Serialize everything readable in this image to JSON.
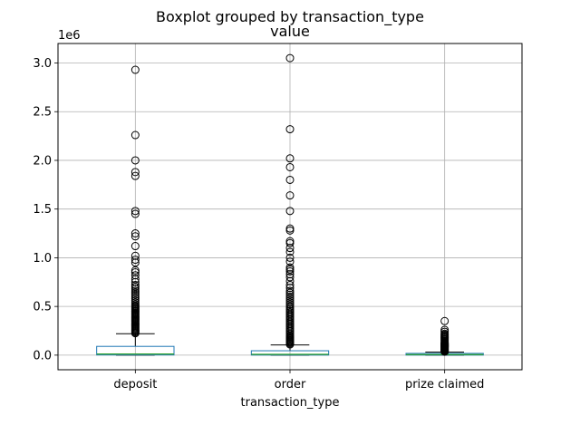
{
  "chart_data": {
    "type": "box",
    "suptitle": "Boxplot grouped by transaction_type",
    "title": "value",
    "xlabel": "transaction_type",
    "ylabel": "",
    "y_offset_label": "1e6",
    "ylim": [
      -150000,
      3200000
    ],
    "y_ticks": [
      0,
      500000,
      1000000,
      1500000,
      2000000,
      2500000,
      3000000
    ],
    "y_tick_labels": [
      "0.0",
      "0.5",
      "1.0",
      "1.5",
      "2.0",
      "2.5",
      "3.0"
    ],
    "grid": true,
    "categories": [
      "deposit",
      "order",
      "prize claimed"
    ],
    "boxes": [
      {
        "name": "deposit",
        "whislo": 0,
        "q1": 2000,
        "median": 12000,
        "q3": 90000,
        "whishi": 220000,
        "fliers": [
          225000,
          235000,
          245000,
          255000,
          265000,
          275000,
          285000,
          295000,
          305000,
          315000,
          325000,
          335000,
          345000,
          355000,
          365000,
          375000,
          385000,
          395000,
          405000,
          415000,
          425000,
          435000,
          445000,
          455000,
          465000,
          475000,
          485000,
          495000,
          505000,
          520000,
          540000,
          560000,
          580000,
          600000,
          620000,
          640000,
          660000,
          680000,
          700000,
          720000,
          750000,
          780000,
          820000,
          850000,
          870000,
          950000,
          980000,
          1020000,
          1120000,
          1220000,
          1250000,
          1450000,
          1480000,
          1840000,
          1880000,
          2000000,
          2260000,
          2930000
        ]
      },
      {
        "name": "order",
        "whislo": 0,
        "q1": 1000,
        "median": 8000,
        "q3": 45000,
        "whishi": 105000,
        "fliers": [
          110000,
          120000,
          130000,
          140000,
          150000,
          160000,
          170000,
          180000,
          190000,
          200000,
          215000,
          230000,
          245000,
          260000,
          275000,
          290000,
          305000,
          320000,
          335000,
          350000,
          365000,
          380000,
          395000,
          410000,
          425000,
          440000,
          455000,
          470000,
          485000,
          500000,
          520000,
          540000,
          560000,
          580000,
          600000,
          620000,
          640000,
          660000,
          690000,
          720000,
          760000,
          800000,
          830000,
          860000,
          880000,
          900000,
          960000,
          1000000,
          1060000,
          1100000,
          1150000,
          1170000,
          1280000,
          1300000,
          1480000,
          1640000,
          1800000,
          1930000,
          2020000,
          2320000,
          3050000
        ]
      },
      {
        "name": "prize claimed",
        "whislo": 0,
        "q1": 1000,
        "median": 6000,
        "q3": 18000,
        "whishi": 32000,
        "fliers": [
          35000,
          40000,
          45000,
          50000,
          55000,
          60000,
          65000,
          70000,
          75000,
          80000,
          85000,
          90000,
          95000,
          100000,
          105000,
          110000,
          115000,
          120000,
          125000,
          130000,
          140000,
          150000,
          160000,
          170000,
          180000,
          190000,
          200000,
          210000,
          220000,
          240000,
          260000,
          350000
        ]
      }
    ],
    "colors": {
      "box": "#1f77b4",
      "median": "#2ca02c",
      "whisker": "#000000",
      "flier": "#000000",
      "grid": "#b0b0b0"
    }
  }
}
